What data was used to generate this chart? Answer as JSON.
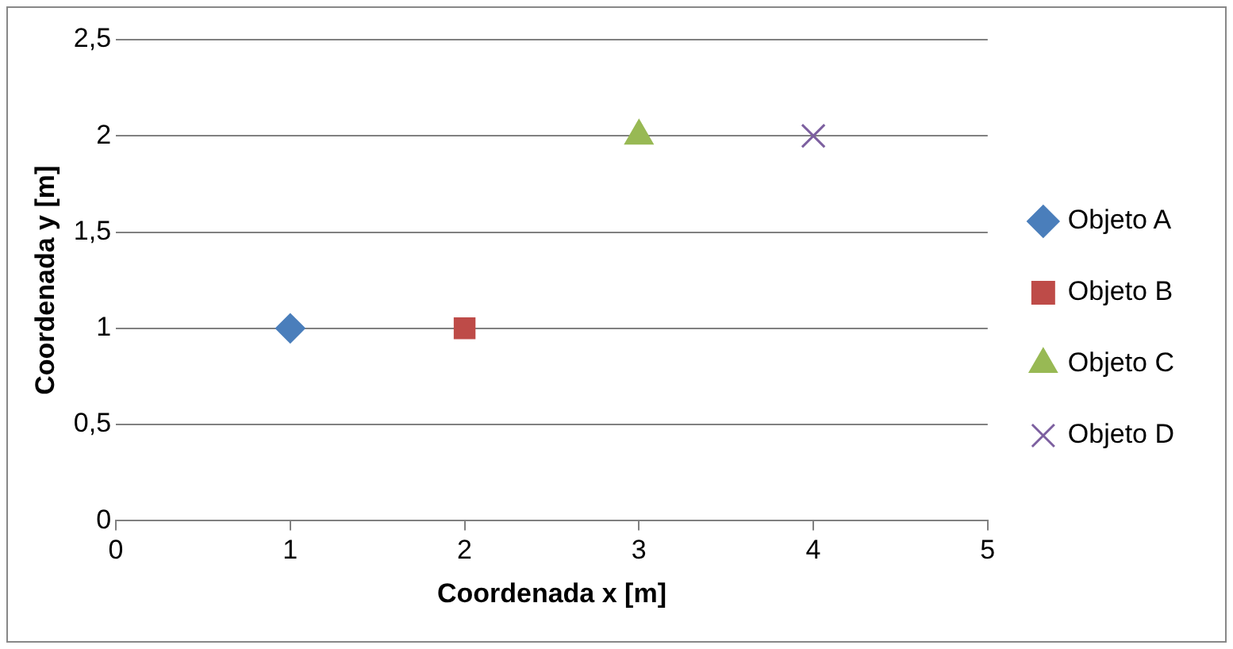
{
  "chart_data": {
    "type": "scatter",
    "xlabel": "Coordenada x [m]",
    "ylabel": "Coordenada y [m]",
    "xlim": [
      0,
      5
    ],
    "xticks": [
      0,
      1,
      2,
      3,
      4,
      5
    ],
    "ylim": [
      0,
      2.5
    ],
    "yticks": [
      {
        "value": 0,
        "label": "0"
      },
      {
        "value": 0.5,
        "label": "0,5"
      },
      {
        "value": 1,
        "label": "1"
      },
      {
        "value": 1.5,
        "label": "1,5"
      },
      {
        "value": 2,
        "label": "2"
      },
      {
        "value": 2.5,
        "label": "2,5"
      }
    ],
    "grid": "y",
    "legend": "right",
    "series": [
      {
        "name": "Objeto A",
        "color": "#4a7ebb",
        "marker": "diamond",
        "x": [
          1
        ],
        "values": [
          1
        ]
      },
      {
        "name": "Objeto B",
        "color": "#be4b48",
        "marker": "square",
        "x": [
          2
        ],
        "values": [
          1
        ]
      },
      {
        "name": "Objeto C",
        "color": "#98b954",
        "marker": "triangle",
        "x": [
          3
        ],
        "values": [
          2
        ]
      },
      {
        "name": "Objeto D",
        "color": "#7d60a0",
        "marker": "cross",
        "x": [
          4
        ],
        "values": [
          2
        ]
      }
    ]
  }
}
